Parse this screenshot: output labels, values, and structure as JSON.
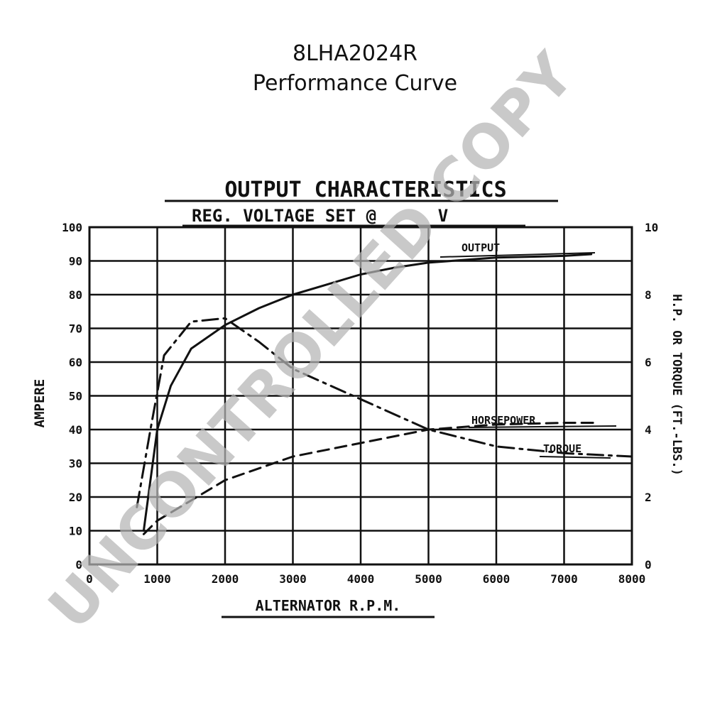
{
  "header": {
    "title": "8LHA2024R",
    "subtitle": "Performance Curve"
  },
  "watermark": "UNCONTROLLED COPY",
  "chart_data": {
    "type": "line",
    "title": "OUTPUT CHARACTERISTICS",
    "subtitle": "REG. VOLTAGE SET @      V",
    "xlabel": "ALTERNATOR R.P.M.",
    "ylabel": "AMPERE",
    "y2label": "H.P. OR TORQUE (FT.-LBS.)",
    "xlim": [
      0,
      8000
    ],
    "ylim": [
      0,
      100
    ],
    "y2lim": [
      0,
      10
    ],
    "grid": true,
    "xticks": [
      "0",
      "1000",
      "2000",
      "3000",
      "4000",
      "5000",
      "6000",
      "7000",
      "8000"
    ],
    "yticks": [
      "0",
      "10",
      "20",
      "30",
      "40",
      "50",
      "60",
      "70",
      "80",
      "90",
      "100"
    ],
    "y2ticks": [
      "0",
      "2",
      "4",
      "6",
      "8",
      "10"
    ],
    "series": [
      {
        "name": "OUTPUT",
        "axis": "left",
        "style": "solid",
        "x": [
          800,
          900,
          1000,
          1200,
          1500,
          2000,
          2500,
          3000,
          3500,
          4000,
          4500,
          5000,
          6000,
          7000,
          7400
        ],
        "y": [
          10,
          25,
          40,
          53,
          64,
          71,
          76,
          80,
          83,
          86,
          88,
          89.5,
          91,
          91.5,
          92
        ]
      },
      {
        "name": "HORSEPOWER",
        "axis": "right",
        "style": "dashed",
        "x": [
          800,
          1000,
          1500,
          2000,
          3000,
          4000,
          5000,
          6000,
          7000,
          7500
        ],
        "y": [
          0.9,
          1.3,
          1.9,
          2.5,
          3.2,
          3.6,
          4.0,
          4.15,
          4.2,
          4.2
        ]
      },
      {
        "name": "TORQUE",
        "axis": "right",
        "style": "dash-dot",
        "x": [
          700,
          900,
          1100,
          1500,
          2000,
          2500,
          3000,
          4000,
          5000,
          6000,
          7000,
          8000
        ],
        "y": [
          1.7,
          4.0,
          6.2,
          7.2,
          7.3,
          6.6,
          5.8,
          4.9,
          4.0,
          3.5,
          3.3,
          3.2
        ]
      }
    ]
  }
}
